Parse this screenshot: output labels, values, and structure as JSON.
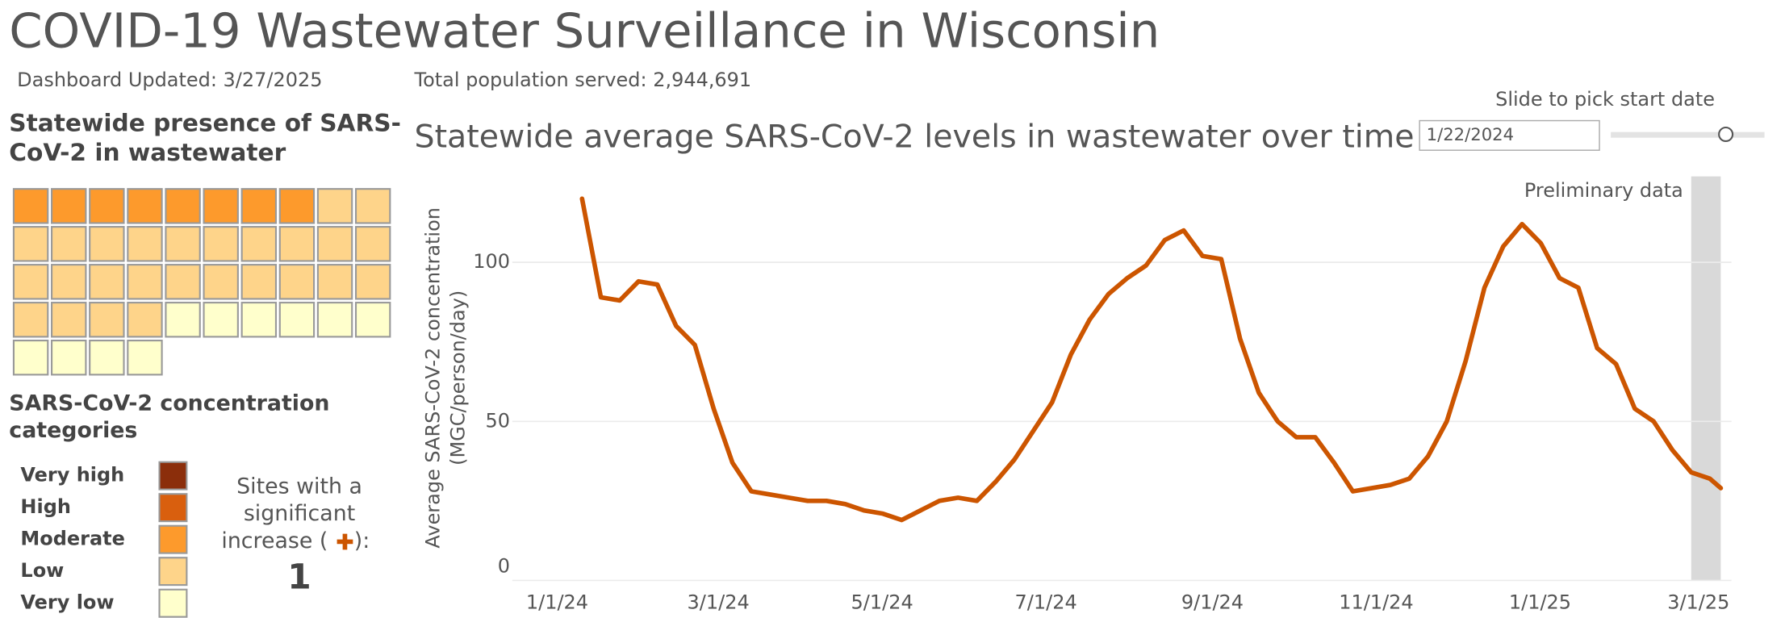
{
  "header": {
    "title": "COVID-19 Wastewater Surveillance in Wisconsin",
    "updated": "Dashboard Updated: 3/27/2025",
    "population": "Total population served: 2,944,691"
  },
  "presence": {
    "title": [
      "Statewide presence of SARS-",
      "CoV-2 in wastewater"
    ],
    "counts": [
      0,
      0,
      8,
      26,
      10
    ]
  },
  "legend": {
    "title": [
      "SARS-CoV-2 concentration",
      "categories"
    ],
    "categories": [
      "Very high",
      "High",
      "Moderate",
      "Low",
      "Very low"
    ],
    "colors": [
      "#8b2e0b",
      "#d95f0e",
      "#fd9a2c",
      "#fed48a",
      "#ffffcc"
    ]
  },
  "increase": {
    "label": [
      "Sites with a",
      "significant",
      "increase ("
    ],
    "suffix": "):",
    "count": "1"
  },
  "slider": {
    "label": "Slide to pick start date",
    "value": "1/22/2024"
  },
  "chart_data": {
    "type": "line",
    "title": "Statewide average SARS-CoV-2 levels in wastewater over time",
    "ylabel": [
      "Average SARS-CoV-2 concentration",
      "(MGC/person/day)"
    ],
    "x": [
      "1/23/24",
      "1/30/24",
      "2/6/24",
      "2/13/24",
      "2/20/24",
      "2/27/24",
      "3/5/24",
      "3/12/24",
      "3/19/24",
      "3/26/24",
      "4/2/24",
      "4/9/24",
      "4/16/24",
      "4/23/24",
      "4/30/24",
      "5/7/24",
      "5/14/24",
      "5/21/24",
      "5/28/24",
      "6/4/24",
      "6/11/24",
      "6/18/24",
      "6/25/24",
      "7/2/24",
      "7/9/24",
      "7/16/24",
      "7/23/24",
      "7/30/24",
      "8/6/24",
      "8/13/24",
      "8/20/24",
      "8/27/24",
      "9/3/24",
      "9/10/24",
      "9/17/24",
      "9/24/24",
      "10/1/24",
      "10/8/24",
      "10/15/24",
      "10/22/24",
      "10/29/24",
      "11/5/24",
      "11/12/24",
      "11/19/24",
      "11/26/24",
      "12/3/24",
      "12/10/24",
      "12/17/24",
      "12/24/24",
      "12/31/24",
      "1/7/25",
      "1/14/25",
      "1/21/25",
      "1/28/25",
      "2/4/25",
      "2/11/25",
      "2/18/25",
      "2/25/25",
      "3/4/25",
      "3/11/25",
      "3/18/25",
      "3/22/25"
    ],
    "values": [
      120,
      89,
      88,
      94,
      93,
      80,
      74,
      54,
      37,
      28,
      27,
      26,
      25,
      25,
      24,
      22,
      21,
      19,
      22,
      25,
      26,
      25,
      31,
      38,
      47,
      56,
      71,
      82,
      90,
      95,
      99,
      107,
      110,
      102,
      101,
      76,
      59,
      50,
      45,
      45,
      37,
      28,
      29,
      30,
      32,
      39,
      50,
      69,
      92,
      105,
      112,
      106,
      95,
      92,
      73,
      68,
      54,
      50,
      41,
      34,
      32,
      29
    ],
    "color": "#cc5500",
    "xlim": [
      "12/28/23",
      "3/26/25"
    ],
    "xticks": [
      "1/1/24",
      "3/1/24",
      "5/1/24",
      "7/1/24",
      "9/1/24",
      "11/1/24",
      "1/1/25",
      "3/1/25"
    ],
    "ylim": [
      0,
      127
    ],
    "yticks": [
      0,
      50,
      100
    ],
    "grid": true,
    "preliminary": {
      "label": "Preliminary data",
      "start": "3/11/25",
      "end": "3/22/25"
    }
  }
}
